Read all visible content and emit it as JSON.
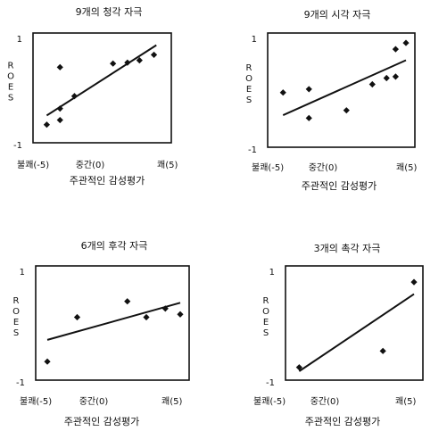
{
  "chart_data": [
    {
      "type": "scatter",
      "title": "9개의 청각 자극",
      "ylabel": "ROES",
      "xlabel": "주관적인 감성평가",
      "x_ticks": [
        "불쾌(-5)",
        "중간(0)",
        "쾌(5)"
      ],
      "y_ticks": [
        "1",
        "-1"
      ],
      "xlim": [
        -5,
        5
      ],
      "ylim": [
        -1,
        1
      ],
      "points": [
        {
          "x": -4.6,
          "y": -0.8
        },
        {
          "x": -3.5,
          "y": 0.45
        },
        {
          "x": -3.5,
          "y": -0.45
        },
        {
          "x": -3.5,
          "y": -0.7
        },
        {
          "x": -2.3,
          "y": -0.18
        },
        {
          "x": 0.9,
          "y": 0.53
        },
        {
          "x": 2.1,
          "y": 0.55
        },
        {
          "x": 3.1,
          "y": 0.6
        },
        {
          "x": 4.3,
          "y": 0.72
        }
      ],
      "trend": {
        "x1": -4.6,
        "y1": -0.6,
        "x2": 4.5,
        "y2": 0.93
      }
    },
    {
      "type": "scatter",
      "title": "9개의 시각 자극",
      "ylabel": "ROES",
      "xlabel": "주관적인 감성평가",
      "x_ticks": [
        "불쾌(-5)",
        "중간(0)",
        "쾌(5)"
      ],
      "y_ticks": [
        "1",
        "-1"
      ],
      "xlim": [
        -5,
        5
      ],
      "ylim": [
        -1,
        1
      ],
      "points": [
        {
          "x": -4.5,
          "y": -0.05
        },
        {
          "x": -2.5,
          "y": 0.02
        },
        {
          "x": -2.5,
          "y": -0.58
        },
        {
          "x": 0.4,
          "y": -0.42
        },
        {
          "x": 2.4,
          "y": 0.12
        },
        {
          "x": 3.5,
          "y": 0.25
        },
        {
          "x": 4.2,
          "y": 0.28
        },
        {
          "x": 4.2,
          "y": 0.85
        },
        {
          "x": 5.0,
          "y": 0.98
        }
      ],
      "trend": {
        "x1": -4.5,
        "y1": -0.52,
        "x2": 5.0,
        "y2": 0.62
      }
    },
    {
      "type": "scatter",
      "title": "6개의 후각 자극",
      "ylabel": "ROES",
      "xlabel": "주관적인 감성평가",
      "x_ticks": [
        "불쾌(-5)",
        "중간(0)",
        "쾌(5)"
      ],
      "y_ticks": [
        "1",
        "-1"
      ],
      "xlim": [
        -5,
        5
      ],
      "ylim": [
        -1,
        1
      ],
      "points": [
        {
          "x": -4.8,
          "y": -0.8
        },
        {
          "x": -2.6,
          "y": 0.12
        },
        {
          "x": 1.1,
          "y": 0.45
        },
        {
          "x": 2.5,
          "y": 0.12
        },
        {
          "x": 3.9,
          "y": 0.3
        },
        {
          "x": 5.0,
          "y": 0.18
        }
      ],
      "trend": {
        "x1": -4.8,
        "y1": -0.35,
        "x2": 5.0,
        "y2": 0.42
      }
    },
    {
      "type": "scatter",
      "title": "3개의 촉각 자극",
      "ylabel": "ROES",
      "xlabel": "주관적인 감성평가",
      "x_ticks": [
        "불쾌(-5)",
        "중간(0)",
        "쾌(5)"
      ],
      "y_ticks": [
        "1",
        "-1"
      ],
      "xlim": [
        -5,
        5
      ],
      "ylim": [
        -1,
        1
      ],
      "points": [
        {
          "x": -4.6,
          "y": -0.92
        },
        {
          "x": 2.4,
          "y": -0.58
        },
        {
          "x": 5.0,
          "y": 0.85
        }
      ],
      "trend": {
        "x1": -4.6,
        "y1": -1.0,
        "x2": 5.0,
        "y2": 0.6
      }
    }
  ]
}
